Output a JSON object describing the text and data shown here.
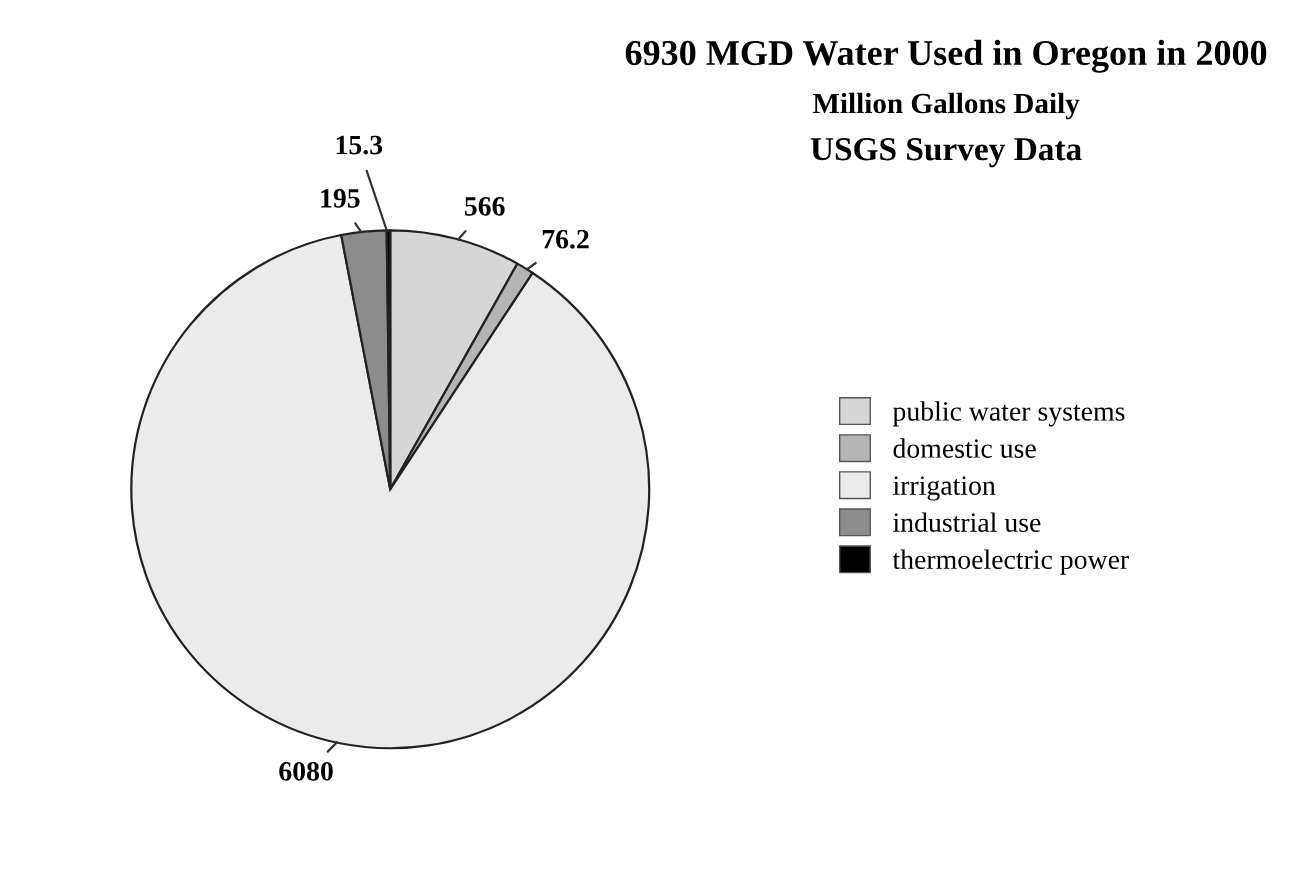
{
  "chart_data": {
    "type": "pie",
    "title": "6930 MGD Water Used in Oregon in 2000",
    "subtitle": "Million Gallons Daily",
    "annotations": [
      "USGS Survey Data"
    ],
    "categories": [
      "public water systems",
      "domestic use",
      "irrigation",
      "industrial use",
      "thermoelectric power"
    ],
    "values": [
      566,
      76.2,
      6080,
      195,
      15.3
    ],
    "colors": [
      "#d6d6d6",
      "#b4b4b4",
      "#ebebeb",
      "#8c8c8c",
      "#000000"
    ],
    "data_labels": true,
    "legend": "right"
  }
}
